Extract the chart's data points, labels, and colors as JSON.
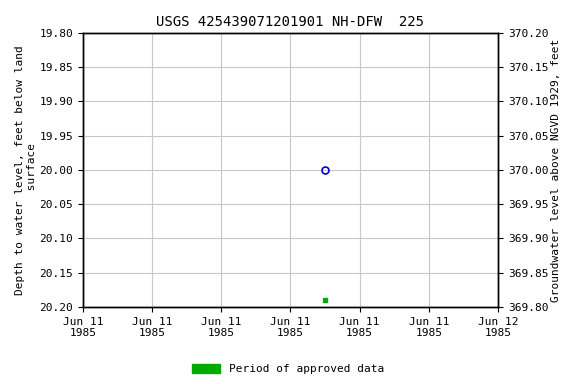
{
  "title": "USGS 425439071201901 NH-DFW  225",
  "left_ylabel": "Depth to water level, feet below land\n surface",
  "right_ylabel": "Groundwater level above NGVD 1929, feet",
  "ylim_left_top": 19.8,
  "ylim_left_bottom": 20.2,
  "ylim_right_top": 370.2,
  "ylim_right_bottom": 369.8,
  "yticks_left": [
    19.8,
    19.85,
    19.9,
    19.95,
    20.0,
    20.05,
    20.1,
    20.15,
    20.2
  ],
  "yticks_right": [
    370.2,
    370.15,
    370.1,
    370.05,
    370.0,
    369.95,
    369.9,
    369.85,
    369.8
  ],
  "xtick_labels": [
    "Jun 11\n1985",
    "Jun 11\n1985",
    "Jun 11\n1985",
    "Jun 11\n1985",
    "Jun 11\n1985",
    "Jun 11\n1985",
    "Jun 12\n1985"
  ],
  "blue_point_x": 3.5,
  "blue_point_y": 20.0,
  "green_point_x": 3.5,
  "green_point_y": 20.19,
  "x_min": 0,
  "x_max": 6,
  "xtick_positions": [
    0,
    1,
    2,
    3,
    4,
    5,
    6
  ],
  "background_color": "#ffffff",
  "grid_color": "#c8c8c8",
  "legend_label": "Period of approved data",
  "legend_color": "#00aa00",
  "blue_marker_color": "#0000cc",
  "title_fontsize": 10,
  "axis_fontsize": 8,
  "tick_fontsize": 8
}
